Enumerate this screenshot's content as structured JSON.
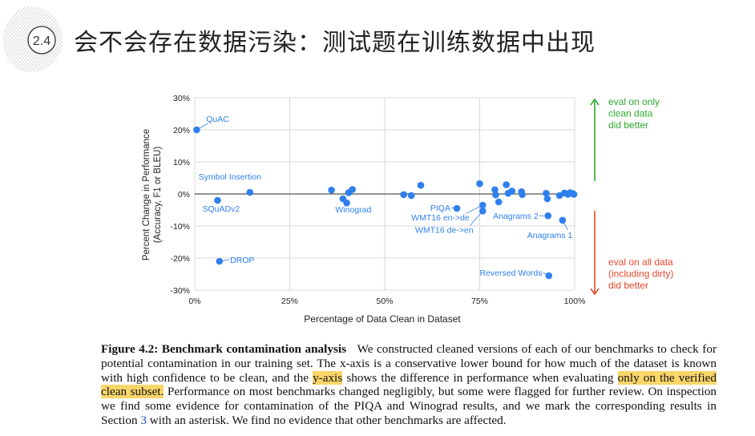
{
  "slide": {
    "badge": "2.4",
    "title": "会不会存在数据污染：测试题在训练数据中出现"
  },
  "chart_data": {
    "type": "scatter",
    "xlabel": "Percentage of Data Clean in Dataset",
    "ylabel_line1": "Percent Change in Performance",
    "ylabel_line2": "(Accuracy, F1 or BLEU)",
    "xlim": [
      0,
      100
    ],
    "ylim": [
      -30,
      30
    ],
    "x_ticks": [
      0,
      25,
      50,
      75,
      100
    ],
    "x_tick_labels": [
      "0%",
      "25%",
      "50%",
      "75%",
      "100%"
    ],
    "y_ticks": [
      30,
      20,
      10,
      0,
      -10,
      -20,
      -30
    ],
    "y_tick_labels": [
      "30%",
      "20%",
      "10%",
      "0%",
      "-10%",
      "-20%",
      "-30%"
    ],
    "grid": true,
    "point_color": "#2f80ed",
    "points": [
      {
        "x": 0.5,
        "y": 20
      },
      {
        "x": 6,
        "y": -2
      },
      {
        "x": 6.5,
        "y": -21
      },
      {
        "x": 14.5,
        "y": 0.5
      },
      {
        "x": 36,
        "y": 1.2
      },
      {
        "x": 39,
        "y": -1.5
      },
      {
        "x": 40,
        "y": -2.8
      },
      {
        "x": 40.5,
        "y": 0.4
      },
      {
        "x": 41.5,
        "y": 1.4
      },
      {
        "x": 55,
        "y": -0.2
      },
      {
        "x": 57,
        "y": -0.5
      },
      {
        "x": 59.5,
        "y": 2.7
      },
      {
        "x": 69,
        "y": -4.5
      },
      {
        "x": 75,
        "y": 3.2
      },
      {
        "x": 75.8,
        "y": -3.5
      },
      {
        "x": 75.8,
        "y": -5.3
      },
      {
        "x": 79,
        "y": 1.3
      },
      {
        "x": 79.2,
        "y": -0.3
      },
      {
        "x": 80,
        "y": -2.5
      },
      {
        "x": 82,
        "y": 2.9
      },
      {
        "x": 82.5,
        "y": 0.2
      },
      {
        "x": 83.5,
        "y": 0.9
      },
      {
        "x": 86,
        "y": 0.7
      },
      {
        "x": 86.2,
        "y": -0.2
      },
      {
        "x": 92.5,
        "y": 0.2
      },
      {
        "x": 92.8,
        "y": -1.5
      },
      {
        "x": 93,
        "y": -6.8
      },
      {
        "x": 93.2,
        "y": -25.5
      },
      {
        "x": 96,
        "y": -0.5
      },
      {
        "x": 96.8,
        "y": -8.2
      },
      {
        "x": 97.3,
        "y": 0.3
      },
      {
        "x": 98.2,
        "y": -0.1
      },
      {
        "x": 98.8,
        "y": 0.4
      },
      {
        "x": 99.5,
        "y": 0.1
      },
      {
        "x": 99.8,
        "y": -0.1
      }
    ],
    "annotations": [
      {
        "text": "QuAC",
        "x": 3,
        "y": 22.5
      },
      {
        "text": "Symbol Insertion",
        "x": 1,
        "y": 4.5
      },
      {
        "text": "SQuADv2",
        "x": 2,
        "y": -5.5
      },
      {
        "text": "DROP",
        "x": 9.3,
        "y": -21.5
      },
      {
        "text": "Winograd",
        "x": 37,
        "y": -5.8
      },
      {
        "text": "PIQA",
        "x": 62,
        "y": -5.3
      },
      {
        "text": "WMT16 en->de",
        "x": 57,
        "y": -8.3
      },
      {
        "text": "WMT16 de->en",
        "x": 58,
        "y": -12.1
      },
      {
        "text": "Anagrams 2",
        "x": 78.5,
        "y": -7.8
      },
      {
        "text": "Anagrams 1",
        "x": 87.5,
        "y": -13.7
      },
      {
        "text": "Reversed Words",
        "x": 75,
        "y": -25.5
      }
    ],
    "side_note_top": [
      "eval on only",
      "clean data",
      "did better"
    ],
    "side_note_bottom": [
      "eval on all data",
      "(including dirty)",
      "did better"
    ],
    "arrow_up_color": "#2eaa2e",
    "arrow_down_color": "#e8482d"
  },
  "caption": {
    "fig_label": "Figure 4.2: Benchmark contamination analysis",
    "text_1": "We constructed cleaned versions of each of our benchmarks to check for potential contamination in our training set. The x-axis is a conservative lower bound for how much of the dataset is known with high confidence to be clean, and the",
    "highlight_1": "y-axis",
    "text_2": "shows the difference in performance when evaluating",
    "highlight_2": "only on the verified clean subset.",
    "text_3": "Performance on most benchmarks changed negligibly, but some were flagged for further review. On inspection we find some evidence for contamination of the PIQA and Winograd results, and we mark the corresponding results in Section",
    "section_ref": "3",
    "text_4": "with an asterisk. We find no evidence that other benchmarks are affected."
  }
}
